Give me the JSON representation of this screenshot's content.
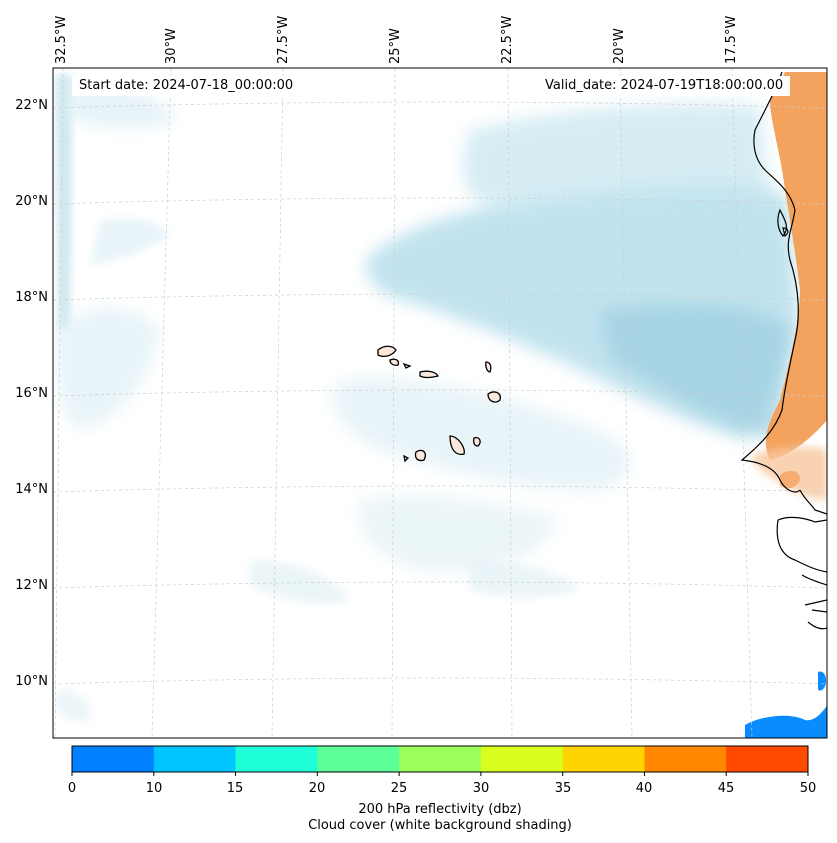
{
  "map": {
    "start_date": "Start date: 2024-07-18_00:00:00",
    "valid_date": "Valid_date: 2024-07-19T18:00:00.00",
    "lon_labels": [
      "32.5°W",
      "30°W",
      "27.5°W",
      "25°W",
      "22.5°W",
      "20°W",
      "17.5°W"
    ],
    "lat_labels": [
      "22°N",
      "20°N",
      "18°N",
      "16°N",
      "14°N",
      "12°N",
      "10°N"
    ]
  },
  "colorbar": {
    "ticks": [
      "0",
      "10",
      "15",
      "20",
      "25",
      "30",
      "35",
      "40",
      "45",
      "50"
    ],
    "colors": [
      "#0080ff",
      "#00c4ff",
      "#1effd8",
      "#5dff98",
      "#9cff5a",
      "#d8ff1e",
      "#ffd400",
      "#ff8800",
      "#ff4a00"
    ],
    "label_line1": "200 hPa reflectivity (dbz)",
    "label_line2": "Cloud cover (white background shading)"
  },
  "colors": {
    "cloud": "#a8d8e8",
    "land_orange": "#f4a35e",
    "low_reflectivity": "#0a8cff",
    "coastline": "#000000"
  }
}
